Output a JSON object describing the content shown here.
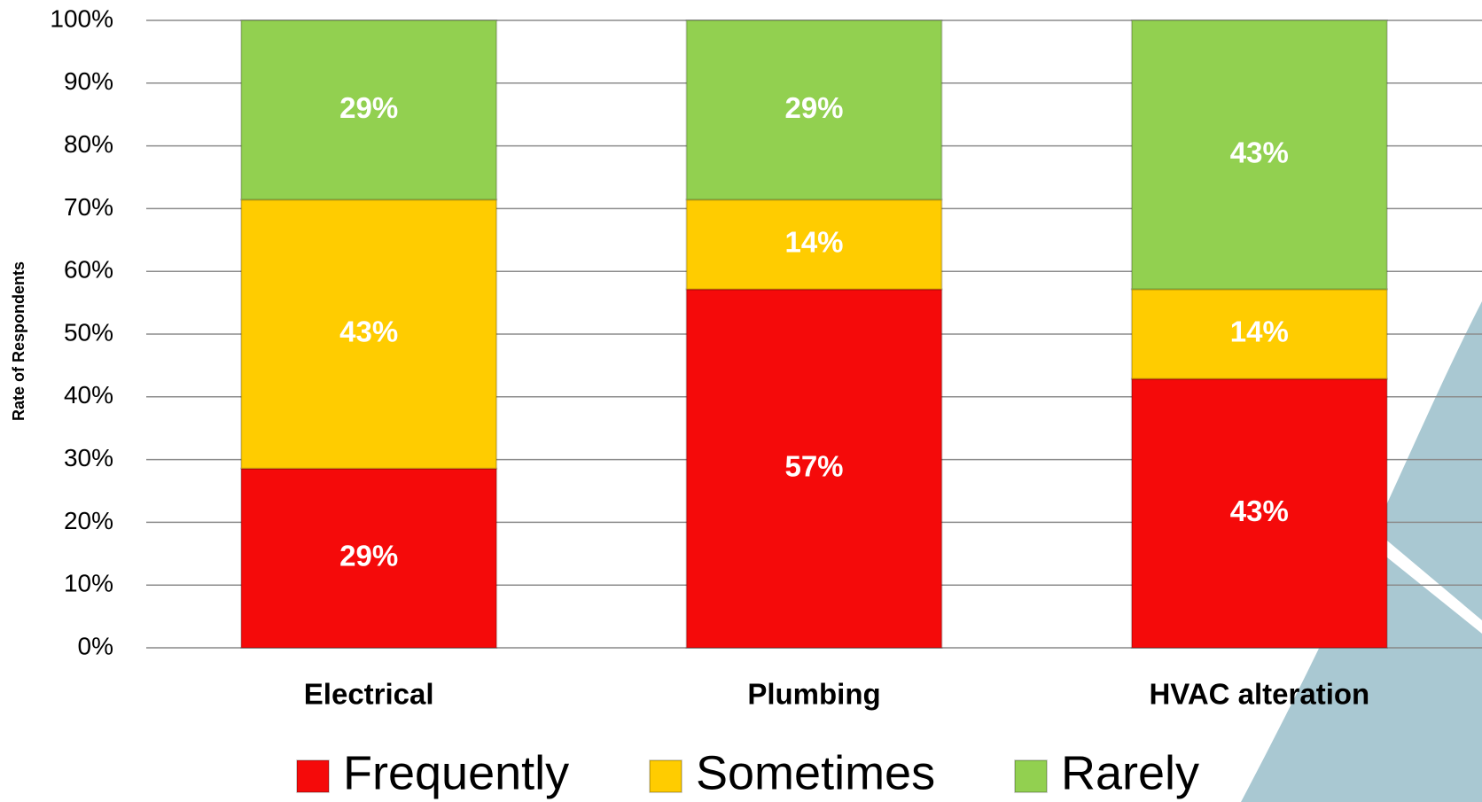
{
  "chart_data": {
    "type": "stacked-bar",
    "y_label": "Rate of Respondents",
    "categories": [
      "Electrical",
      "Plumbing",
      "HVAC alteration"
    ],
    "series": [
      {
        "name": "Frequently",
        "color": "#f50a0a",
        "values": [
          28.57,
          57.14,
          42.86
        ],
        "value_labels": [
          "29%",
          "57%",
          "43%"
        ]
      },
      {
        "name": "Sometimes",
        "color": "#ffcc00",
        "values": [
          42.86,
          14.29,
          14.29
        ],
        "value_labels": [
          "43%",
          "14%",
          "14%"
        ]
      },
      {
        "name": "Rarely",
        "color": "#92d050",
        "values": [
          28.57,
          28.57,
          42.86
        ],
        "value_labels": [
          "29%",
          "29%",
          "43%"
        ]
      }
    ],
    "ylim": [
      0,
      100
    ],
    "yticks": [
      {
        "value": 0,
        "label": "0%"
      },
      {
        "value": 10,
        "label": "10%"
      },
      {
        "value": 20,
        "label": "20%"
      },
      {
        "value": 30,
        "label": "30%"
      },
      {
        "value": 40,
        "label": "40%"
      },
      {
        "value": 50,
        "label": "50%"
      },
      {
        "value": 60,
        "label": "60%"
      },
      {
        "value": 70,
        "label": "70%"
      },
      {
        "value": 80,
        "label": "80%"
      },
      {
        "value": 90,
        "label": "90%"
      },
      {
        "value": 100,
        "label": "100%"
      }
    ],
    "grid": true
  }
}
